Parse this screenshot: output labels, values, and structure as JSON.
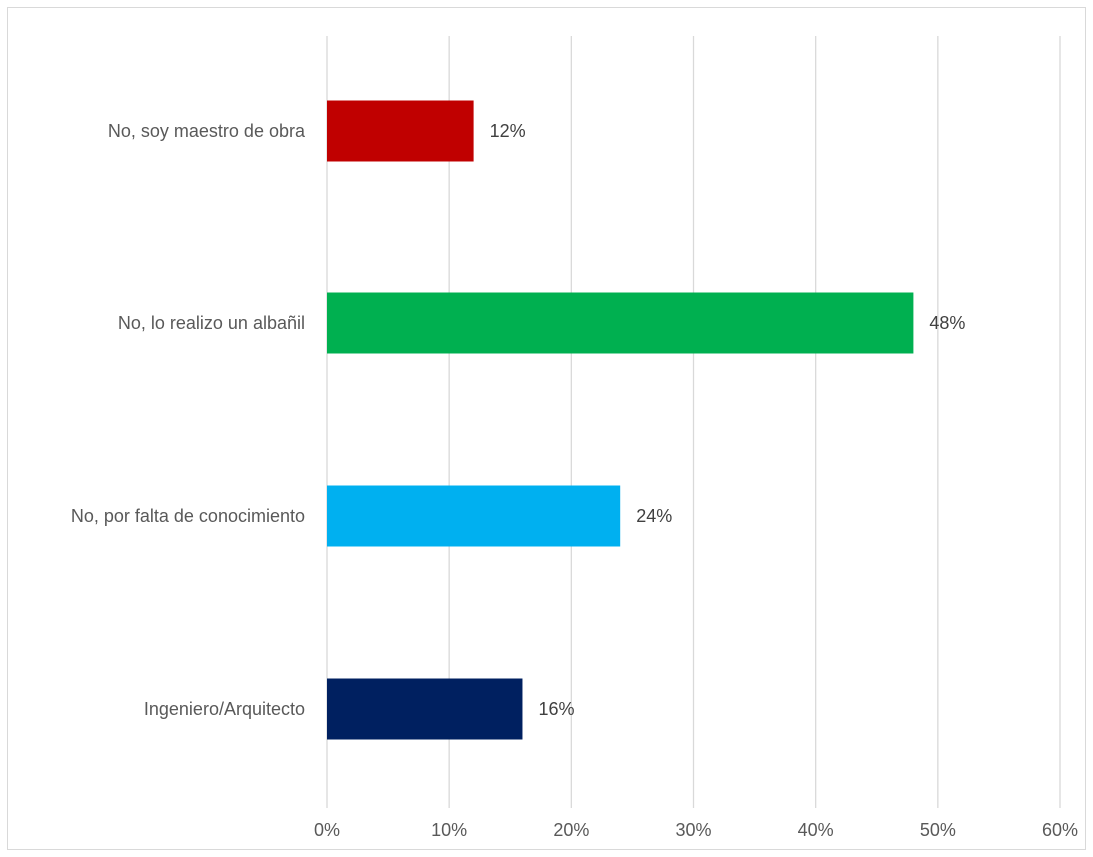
{
  "chart_data": {
    "type": "bar",
    "orientation": "horizontal",
    "categories": [
      "No, soy maestro de obra",
      "No, lo realizo un albañil",
      "No, por falta de conocimiento",
      "Ingeniero/Arquitecto"
    ],
    "values": [
      12,
      48,
      24,
      16
    ],
    "data_labels": [
      "12%",
      "48%",
      "24%",
      "16%"
    ],
    "colors": [
      "#c00000",
      "#00b050",
      "#00b0f0",
      "#002060"
    ],
    "x_ticks": [
      "0%",
      "10%",
      "20%",
      "30%",
      "40%",
      "50%",
      "60%"
    ],
    "xlim": [
      0,
      60
    ],
    "grid": true,
    "title": "",
    "xlabel": "",
    "ylabel": ""
  }
}
